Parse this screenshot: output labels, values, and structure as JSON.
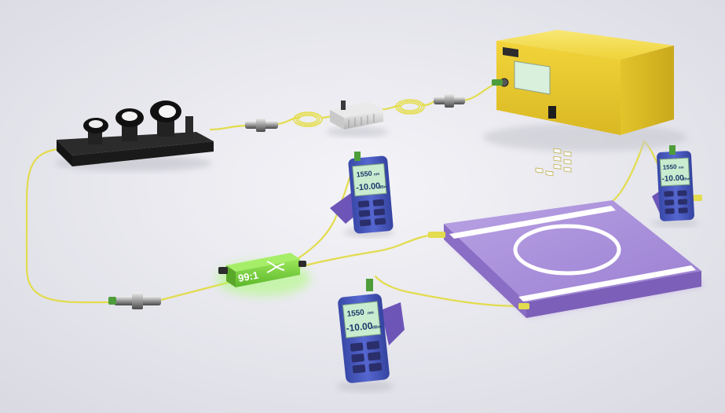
{
  "colors": {
    "background": "#e9e9ef",
    "fiber": "#e8e25a",
    "laser_body": "#f2d93a",
    "ring_chip": "#a78bd8",
    "meter_body": "#4b5cc4",
    "coupler": "#7ad33a",
    "meter_screen": "#c9ecd0"
  },
  "icons": [
    "tunable-laser",
    "polarization-controller",
    "modulator",
    "fiber-coupler",
    "optical-power-meter",
    "microring-resonator-chip",
    "fiber-connector",
    "fiber-coil"
  ],
  "coupler": {
    "label": "99:1"
  },
  "meters": [
    {
      "wavelength": "1550",
      "wavelength_unit": "nm",
      "power": "-10.00",
      "power_unit": "dBm"
    },
    {
      "wavelength": "1550",
      "wavelength_unit": "nm",
      "power": "-10.00",
      "power_unit": "dBm"
    },
    {
      "wavelength": "1550",
      "wavelength_unit": "nm",
      "power": "-10.00",
      "power_unit": "dBm"
    }
  ]
}
